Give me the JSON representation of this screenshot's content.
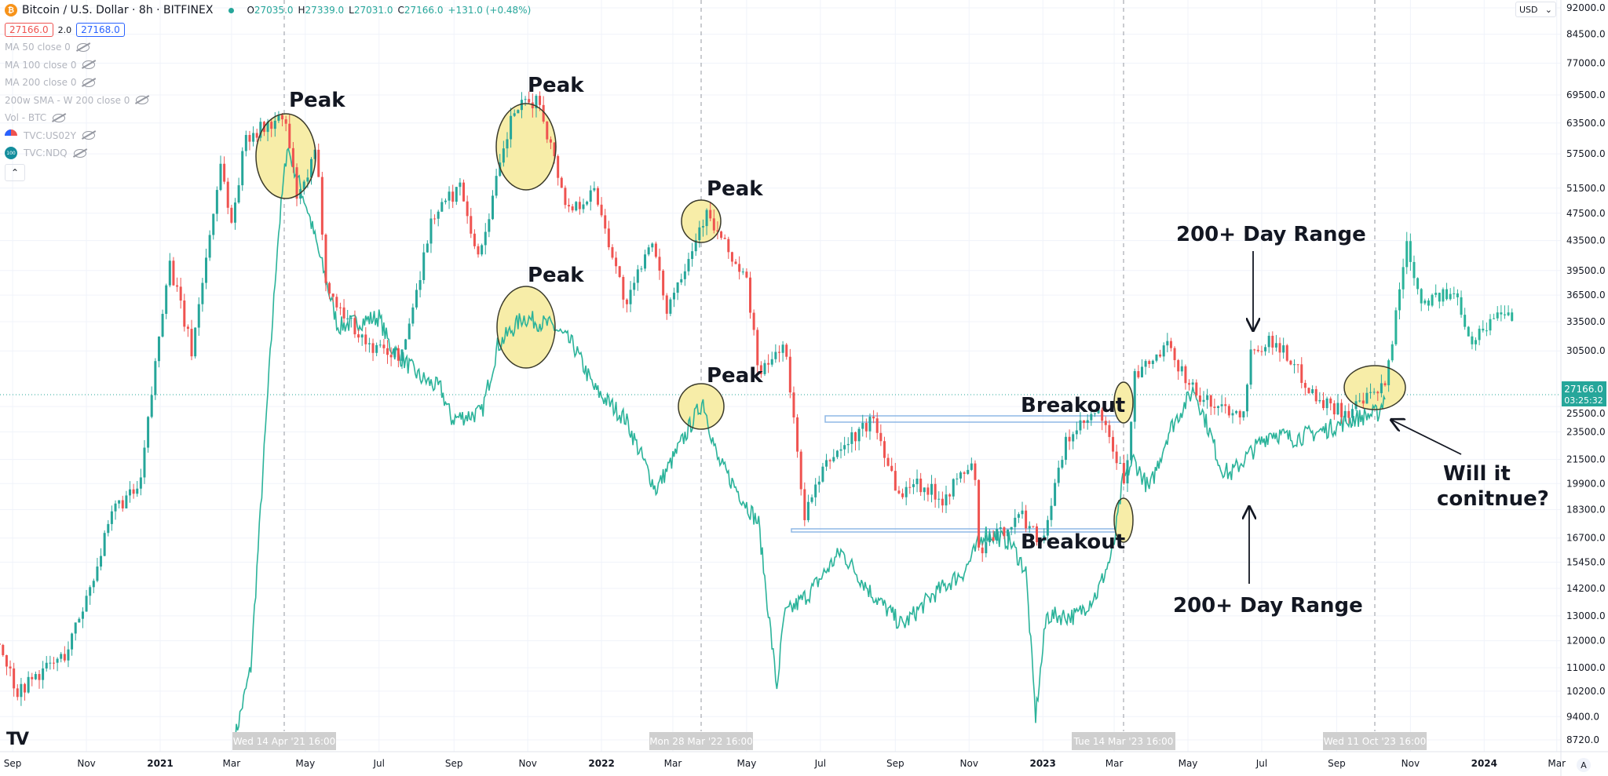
{
  "header": {
    "symbol_title": "Bitcoin / U.S. Dollar · 8h · BITFINEX",
    "ohlc": {
      "o_label": "O",
      "o": "27035.0",
      "h_label": "H",
      "h": "27339.0",
      "l_label": "L",
      "l": "27031.0",
      "c_label": "C",
      "c": "27166.0",
      "change": "+131.0 (+0.48%)"
    },
    "bid": "27166.0",
    "spread": "2.0",
    "ask": "27168.0"
  },
  "indicators": [
    {
      "label": "MA 50 close 0",
      "icon": "eye-off-icon"
    },
    {
      "label": "MA 100 close 0",
      "icon": "eye-off-icon"
    },
    {
      "label": "MA 200 close 0",
      "icon": "eye-off-icon"
    },
    {
      "label": "200w SMA - W 200 close 0",
      "icon": "eye-off-icon"
    },
    {
      "label": "Vol - BTC",
      "icon": "eye-off-icon"
    },
    {
      "label": "TVC:US02Y",
      "icon": "eye-off-icon"
    },
    {
      "label": "TVC:NDQ",
      "icon": "eye-off-icon"
    }
  ],
  "ndq_badge": "100",
  "currency_select": "USD",
  "auto_scale_button": "A",
  "current_price": {
    "value": "27166.0",
    "countdown": "03:25:32"
  },
  "crosshair_labels": [
    "Wed 14 Apr '21 16:00",
    "Mon 28 Mar '22 16:00",
    "Tue 14 Mar '23 16:00",
    "Wed 11 Oct '23 16:00"
  ],
  "colors": {
    "up": "#26a69a",
    "down": "#ef5350",
    "overlay": "#2bb39a",
    "highlight": "#f7eda8",
    "range_box": "#8fb8e6",
    "axis_text": "#131722"
  },
  "annotations": {
    "peak": "Peak",
    "breakout": "Breakout",
    "range": "200+ Day Range",
    "question_line1": "Will it",
    "question_line2": "conitnue?"
  },
  "chart_data": {
    "type": "line",
    "scale": "log",
    "ylim": [
      8720,
      92000
    ],
    "y_ticks": [
      "92000.0",
      "84500.0",
      "77000.0",
      "69500.0",
      "63500.0",
      "57500.0",
      "51500.0",
      "47500.0",
      "43500.0",
      "39500.0",
      "36500.0",
      "33500.0",
      "30500.0",
      "25500.0",
      "23500.0",
      "21500.0",
      "19900.0",
      "18300.0",
      "16700.0",
      "15450.0",
      "14200.0",
      "13000.0",
      "12000.0",
      "11000.0",
      "10200.0",
      "9400.0",
      "8720.0"
    ],
    "x_ticks": [
      "Sep",
      "Nov",
      "2021",
      "Mar",
      "May",
      "Jul",
      "Sep",
      "Nov",
      "2022",
      "Mar",
      "May",
      "Jul",
      "Sep",
      "Nov",
      "2023",
      "Mar",
      "May",
      "Jul",
      "Sep",
      "Nov",
      "2024",
      "Mar"
    ],
    "x_tick_dates": [
      "2020-09-01",
      "2020-11-01",
      "2021-01-01",
      "2021-03-01",
      "2021-05-01",
      "2021-07-01",
      "2021-09-01",
      "2021-11-01",
      "2022-01-01",
      "2022-03-01",
      "2022-05-01",
      "2022-07-01",
      "2022-09-01",
      "2022-11-01",
      "2023-01-01",
      "2023-03-01",
      "2023-05-01",
      "2023-07-01",
      "2023-09-01",
      "2023-11-01",
      "2024-01-01",
      "2024-03-01"
    ],
    "grid": true,
    "series": [
      {
        "name": "Bitcoin / U.S. Dollar",
        "style": "candles",
        "points": [
          [
            "2020-08-21",
            11900
          ],
          [
            "2020-09-05",
            10200
          ],
          [
            "2020-09-20",
            10700
          ],
          [
            "2020-10-15",
            11500
          ],
          [
            "2020-11-01",
            13800
          ],
          [
            "2020-11-25",
            18500
          ],
          [
            "2020-12-15",
            19500
          ],
          [
            "2021-01-08",
            41000
          ],
          [
            "2021-01-27",
            30500
          ],
          [
            "2021-02-21",
            57000
          ],
          [
            "2021-02-28",
            45000
          ],
          [
            "2021-03-13",
            61000
          ],
          [
            "2021-04-14",
            64500
          ],
          [
            "2021-04-25",
            49000
          ],
          [
            "2021-05-10",
            58000
          ],
          [
            "2021-05-19",
            37000
          ],
          [
            "2021-06-22",
            31000
          ],
          [
            "2021-07-20",
            30000
          ],
          [
            "2021-08-14",
            47000
          ],
          [
            "2021-09-07",
            52000
          ],
          [
            "2021-09-21",
            41000
          ],
          [
            "2021-10-20",
            66000
          ],
          [
            "2021-11-10",
            68500
          ],
          [
            "2021-12-04",
            48000
          ],
          [
            "2021-12-27",
            51000
          ],
          [
            "2022-01-22",
            35000
          ],
          [
            "2022-02-10",
            44000
          ],
          [
            "2022-02-24",
            35000
          ],
          [
            "2022-03-28",
            47500
          ],
          [
            "2022-05-01",
            38000
          ],
          [
            "2022-05-12",
            28000
          ],
          [
            "2022-06-01",
            31500
          ],
          [
            "2022-06-18",
            18000
          ],
          [
            "2022-07-08",
            21500
          ],
          [
            "2022-08-14",
            24500
          ],
          [
            "2022-09-06",
            18800
          ],
          [
            "2022-09-14",
            20200
          ],
          [
            "2022-10-10",
            19000
          ],
          [
            "2022-11-05",
            21400
          ],
          [
            "2022-11-09",
            16000
          ],
          [
            "2022-12-14",
            18000
          ],
          [
            "2022-12-31",
            16500
          ],
          [
            "2023-01-21",
            23000
          ],
          [
            "2023-02-16",
            25000
          ],
          [
            "2023-03-10",
            20000
          ],
          [
            "2023-03-18",
            28000
          ],
          [
            "2023-04-14",
            30800
          ],
          [
            "2023-05-12",
            26000
          ],
          [
            "2023-06-15",
            25000
          ],
          [
            "2023-06-23",
            31000
          ],
          [
            "2023-07-13",
            31500
          ],
          [
            "2023-08-17",
            26000
          ],
          [
            "2023-09-11",
            25000
          ],
          [
            "2023-10-11",
            27166
          ],
          [
            "2023-10-29",
            43500
          ],
          [
            "2023-11-09",
            36000
          ],
          [
            "2023-12-09",
            36500
          ],
          [
            "2023-12-22",
            31500
          ],
          [
            "2024-01-16",
            35000
          ],
          [
            "2024-01-25",
            34000
          ]
        ]
      },
      {
        "name": "TVC:NDQ",
        "style": "line",
        "points": [
          [
            "2021-03-04",
            8800
          ],
          [
            "2021-03-17",
            11000
          ],
          [
            "2021-03-30",
            25000
          ],
          [
            "2021-04-08",
            43000
          ],
          [
            "2021-04-16",
            59000
          ],
          [
            "2021-05-03",
            48000
          ],
          [
            "2021-05-28",
            33000
          ],
          [
            "2021-07-01",
            34000
          ],
          [
            "2021-07-10",
            31000
          ],
          [
            "2021-08-04",
            28000
          ],
          [
            "2021-08-21",
            27000
          ],
          [
            "2021-08-30",
            24500
          ],
          [
            "2021-09-24",
            25000
          ],
          [
            "2021-10-07",
            31000
          ],
          [
            "2021-10-28",
            34000
          ],
          [
            "2021-11-22",
            33000
          ],
          [
            "2021-12-09",
            31000
          ],
          [
            "2021-12-26",
            27000
          ],
          [
            "2022-01-21",
            24500
          ],
          [
            "2022-02-15",
            19500
          ],
          [
            "2022-03-04",
            22000
          ],
          [
            "2022-03-26",
            26000
          ],
          [
            "2022-04-07",
            21500
          ],
          [
            "2022-05-11",
            17500
          ],
          [
            "2022-05-26",
            10300
          ],
          [
            "2022-06-01",
            13000
          ],
          [
            "2022-06-22",
            14000
          ],
          [
            "2022-07-18",
            16000
          ],
          [
            "2022-08-12",
            14000
          ],
          [
            "2022-09-07",
            12600
          ],
          [
            "2022-10-02",
            13900
          ],
          [
            "2022-10-28",
            15000
          ],
          [
            "2022-11-14",
            17000
          ],
          [
            "2022-12-05",
            16500
          ],
          [
            "2022-12-18",
            15000
          ],
          [
            "2022-12-26",
            9400
          ],
          [
            "2023-01-04",
            13000
          ],
          [
            "2023-01-29",
            13000
          ],
          [
            "2023-02-15",
            14000
          ],
          [
            "2023-02-28",
            16000
          ],
          [
            "2023-03-08",
            20000
          ],
          [
            "2023-03-17",
            21500
          ],
          [
            "2023-03-30",
            19500
          ],
          [
            "2023-04-15",
            23500
          ],
          [
            "2023-05-06",
            27000
          ],
          [
            "2023-05-19",
            23500
          ],
          [
            "2023-05-28",
            21000
          ],
          [
            "2023-06-05",
            20500
          ],
          [
            "2023-06-22",
            22000
          ],
          [
            "2023-07-09",
            23500
          ],
          [
            "2023-07-26",
            23000
          ],
          [
            "2023-08-21",
            23600
          ],
          [
            "2023-09-15",
            24500
          ],
          [
            "2023-10-06",
            25000
          ],
          [
            "2023-10-11",
            26500
          ]
        ]
      }
    ]
  }
}
